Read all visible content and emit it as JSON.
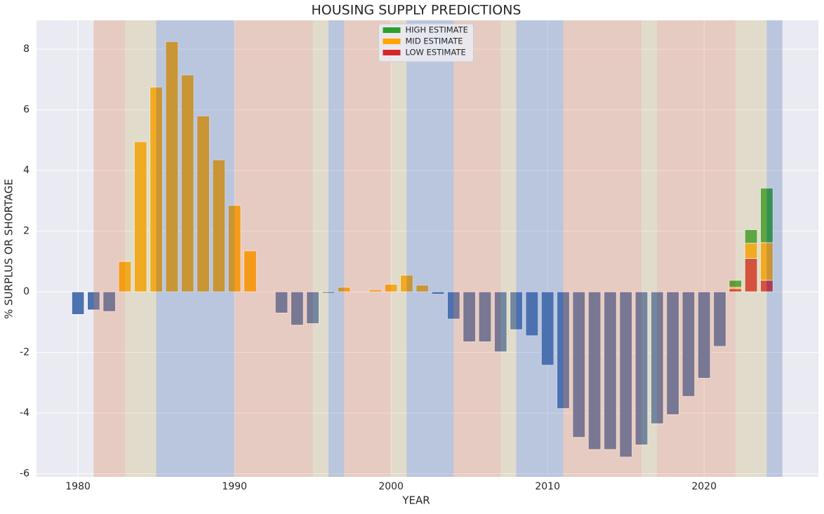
{
  "chart_data": {
    "type": "bar",
    "title": "HOUSING SUPPLY PREDICTIONS",
    "xlabel": "YEAR",
    "ylabel": "% SURPLUS OR SHORTAGE",
    "x": [
      1980,
      1981,
      1982,
      1983,
      1984,
      1985,
      1986,
      1987,
      1988,
      1989,
      1990,
      1991,
      1992,
      1993,
      1994,
      1995,
      1996,
      1997,
      1998,
      1999,
      2000,
      2001,
      2002,
      2003,
      2004,
      2005,
      2006,
      2007,
      2008,
      2009,
      2010,
      2011,
      2012,
      2013,
      2014,
      2015,
      2016,
      2017,
      2018,
      2019,
      2020,
      2021
    ],
    "values": [
      -0.75,
      -0.6,
      -0.65,
      1.0,
      4.95,
      6.75,
      8.25,
      7.15,
      5.8,
      4.35,
      2.85,
      1.35,
      0,
      -0.7,
      -1.1,
      -1.05,
      -0.05,
      0.15,
      -0.02,
      0.07,
      0.25,
      0.55,
      0.22,
      -0.08,
      -0.9,
      -1.65,
      -1.65,
      -1.98,
      -1.25,
      -1.45,
      -2.42,
      -3.85,
      -4.8,
      -5.2,
      -5.2,
      -5.45,
      -5.05,
      -4.35,
      -4.05,
      -3.45,
      -2.85,
      -1.8
    ],
    "positive_color": "#ffa500",
    "negative_color": "#4c72b0",
    "estimates": {
      "x": [
        2022,
        2023,
        2024
      ],
      "series": [
        {
          "name": "HIGH ESTIMATE",
          "color": "#2ca02c",
          "values": [
            0.38,
            2.05,
            3.42
          ]
        },
        {
          "name": "MID ESTIMATE",
          "color": "#ffa500",
          "values": [
            0.15,
            1.6,
            1.62
          ]
        },
        {
          "name": "LOW ESTIMATE",
          "color": "#d62728",
          "values": [
            0.1,
            1.1,
            0.38
          ]
        }
      ]
    },
    "spans": [
      {
        "start": 1981,
        "end": 1983,
        "color": "#dd8452"
      },
      {
        "start": 1983,
        "end": 1985,
        "color": "#ccb974"
      },
      {
        "start": 1985,
        "end": 1990,
        "color": "#4c72b0"
      },
      {
        "start": 1990,
        "end": 1995,
        "color": "#dd8452"
      },
      {
        "start": 1995,
        "end": 1996,
        "color": "#ccb974"
      },
      {
        "start": 1996,
        "end": 1997,
        "color": "#4c72b0"
      },
      {
        "start": 1997,
        "end": 2000,
        "color": "#dd8452"
      },
      {
        "start": 2000,
        "end": 2001,
        "color": "#ccb974"
      },
      {
        "start": 2001,
        "end": 2004,
        "color": "#4c72b0"
      },
      {
        "start": 2004,
        "end": 2007,
        "color": "#dd8452"
      },
      {
        "start": 2007,
        "end": 2008,
        "color": "#ccb974"
      },
      {
        "start": 2008,
        "end": 2011,
        "color": "#4c72b0"
      },
      {
        "start": 2011,
        "end": 2016,
        "color": "#dd8452"
      },
      {
        "start": 2016,
        "end": 2017,
        "color": "#ccb974"
      },
      {
        "start": 2017,
        "end": 2022,
        "color": "#dd8452"
      },
      {
        "start": 2022,
        "end": 2024,
        "color": "#ccb974"
      },
      {
        "start": 2024,
        "end": 2025,
        "color": "#4c72b0"
      }
    ],
    "xlim": [
      1977.35,
      2027.3
    ],
    "ylim": [
      -6.1,
      8.95
    ],
    "xticks": [
      1980,
      1990,
      2000,
      2010,
      2020
    ],
    "yticks": [
      -6,
      -4,
      -2,
      0,
      2,
      4,
      6,
      8
    ],
    "grid": true,
    "legend": "upper center"
  }
}
